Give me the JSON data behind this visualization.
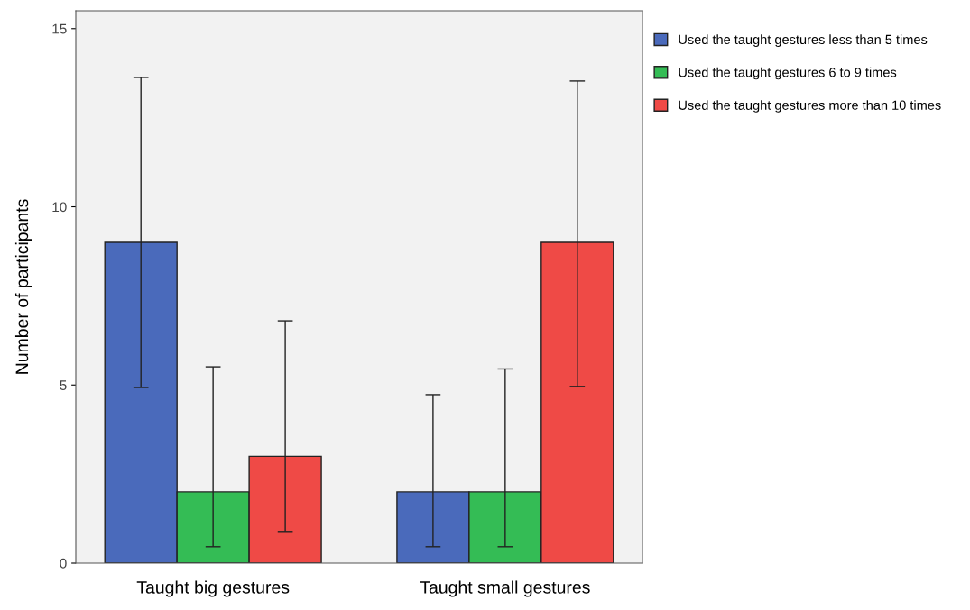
{
  "chart_data": {
    "type": "bar",
    "ylabel": "Number of participants",
    "categories": [
      "Taught big gestures",
      "Taught small gestures"
    ],
    "series": [
      {
        "name": "Used the taught gestures less than 5 times",
        "color": "#4a6abb",
        "values": [
          9,
          2
        ],
        "errors": [
          [
            4.93,
            13.63
          ],
          [
            0.46,
            4.73
          ]
        ]
      },
      {
        "name": "Used the taught gestures 6 to 9 times",
        "color": "#34bc55",
        "values": [
          2,
          2
        ],
        "errors": [
          [
            0.46,
            5.51
          ],
          [
            0.46,
            5.45
          ]
        ]
      },
      {
        "name": "Used the taught gestures more than 10 times",
        "color": "#ef4a46",
        "values": [
          3,
          9
        ],
        "errors": [
          [
            0.89,
            6.8
          ],
          [
            4.96,
            13.53
          ]
        ]
      }
    ],
    "ylim": [
      0,
      15.5
    ],
    "yticks": [
      0,
      5,
      10,
      15
    ],
    "grid": false,
    "legend": "top right"
  }
}
